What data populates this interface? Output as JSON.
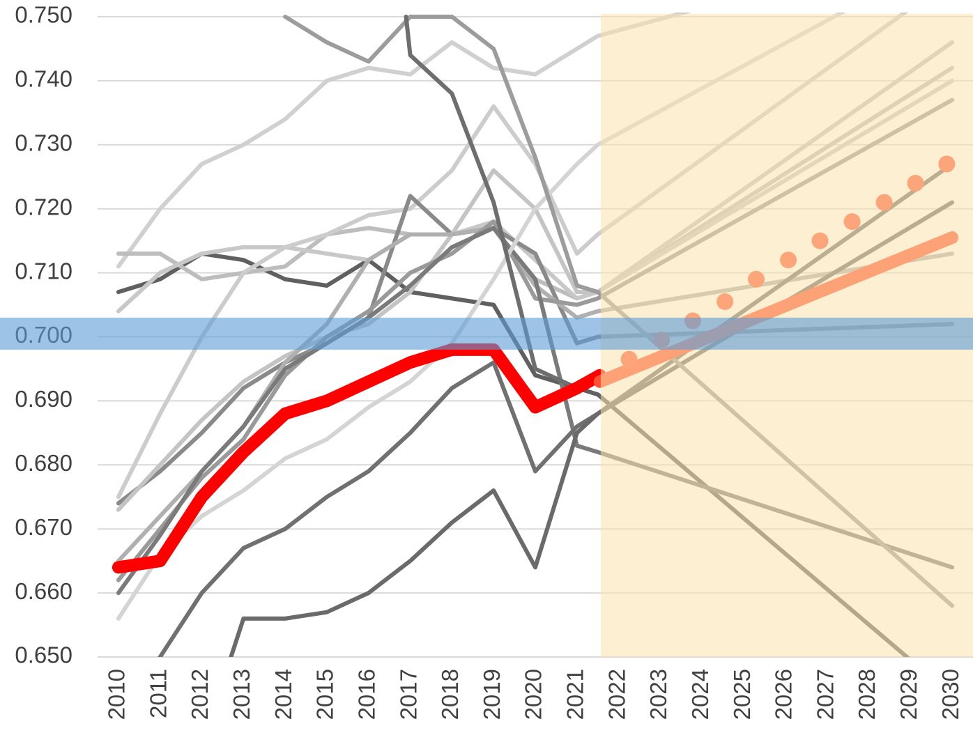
{
  "chart_data": {
    "type": "line",
    "xlim": [
      2009.5,
      2030.5
    ],
    "xticks": [
      2010,
      2011,
      2012,
      2013,
      2014,
      2015,
      2016,
      2017,
      2018,
      2019,
      2020,
      2021,
      2022,
      2023,
      2024,
      2025,
      2026,
      2027,
      2028,
      2029,
      2030
    ],
    "ylim": [
      0.65,
      0.75
    ],
    "yticks": [
      {
        "value": 0.65,
        "label": "0.650"
      },
      {
        "value": 0.66,
        "label": "0.660"
      },
      {
        "value": 0.67,
        "label": "0.670"
      },
      {
        "value": 0.68,
        "label": "0.680"
      },
      {
        "value": 0.69,
        "label": "0.690"
      },
      {
        "value": 0.7,
        "label": "0.700"
      },
      {
        "value": 0.71,
        "label": "0.710"
      },
      {
        "value": 0.72,
        "label": "0.720"
      },
      {
        "value": 0.73,
        "label": "0.730"
      },
      {
        "value": 0.74,
        "label": "0.740"
      },
      {
        "value": 0.75,
        "label": "0.750"
      }
    ],
    "grid": true,
    "shaded_x": [
      2021.57,
      2030.5
    ],
    "shaded_color": "#fbe3ad",
    "band_y": [
      0.698,
      0.703
    ],
    "band_color": "#5b9bd5",
    "series": [
      {
        "kind": "line",
        "color": "#606060",
        "x": [
          2010,
          2011,
          2012,
          2013,
          2014,
          2015,
          2016,
          2017,
          2018,
          2019,
          2020,
          2021,
          2021.5,
          2030
        ],
        "values": [
          0.707,
          0.709,
          0.713,
          0.712,
          0.709,
          0.708,
          0.712,
          0.707,
          0.706,
          0.705,
          0.694,
          0.692,
          0.691,
          0.644
        ]
      },
      {
        "kind": "line",
        "color": "#d0d0d0",
        "x": [
          2010,
          2011,
          2012,
          2013,
          2014,
          2015,
          2016,
          2017,
          2018,
          2019,
          2020,
          2021,
          2021.5,
          2030
        ],
        "values": [
          0.711,
          0.72,
          0.727,
          0.73,
          0.734,
          0.74,
          0.742,
          0.741,
          0.746,
          0.742,
          0.741,
          0.745,
          0.747,
          0.762
        ]
      },
      {
        "kind": "line",
        "color": "#bdbdbd",
        "x": [
          2010,
          2011,
          2012,
          2013,
          2014,
          2015,
          2016,
          2017,
          2018,
          2019,
          2020,
          2021,
          2021.5,
          2030
        ],
        "values": [
          0.713,
          0.713,
          0.709,
          0.71,
          0.711,
          0.716,
          0.717,
          0.716,
          0.716,
          0.717,
          0.709,
          0.706,
          0.707,
          0.742
        ]
      },
      {
        "kind": "line",
        "color": "#c8c8c8",
        "x": [
          2010,
          2011,
          2012,
          2013,
          2014,
          2015,
          2016,
          2017,
          2018,
          2019,
          2020,
          2021,
          2021.5,
          2030
        ],
        "values": [
          0.704,
          0.71,
          0.713,
          0.714,
          0.714,
          0.713,
          0.712,
          0.716,
          0.716,
          0.718,
          0.712,
          0.706,
          0.707,
          0.74
        ]
      },
      {
        "kind": "line",
        "color": "#cccccc",
        "x": [
          2010,
          2011,
          2012,
          2013,
          2014,
          2015,
          2016,
          2017,
          2018,
          2019,
          2020,
          2021,
          2021.5,
          2030
        ],
        "values": [
          0.675,
          0.688,
          0.7,
          0.71,
          0.714,
          0.716,
          0.719,
          0.72,
          0.726,
          0.736,
          0.727,
          0.713,
          0.716,
          0.756
        ]
      },
      {
        "kind": "line",
        "color": "#8a8a8a",
        "x": [
          2010,
          2011,
          2012,
          2013,
          2014,
          2015,
          2016,
          2017,
          2018,
          2019,
          2020,
          2021,
          2021.5,
          2030
        ],
        "values": [
          0.674,
          0.679,
          0.685,
          0.692,
          0.696,
          0.699,
          0.703,
          0.722,
          0.716,
          0.717,
          0.713,
          0.699,
          0.7,
          0.702
        ]
      },
      {
        "kind": "line",
        "color": "#c4c4c4",
        "x": [
          2010,
          2011,
          2012,
          2013,
          2014,
          2015,
          2016,
          2017,
          2018,
          2019,
          2020,
          2021,
          2021.5,
          2030
        ],
        "values": [
          0.673,
          0.68,
          0.687,
          0.693,
          0.697,
          0.7,
          0.702,
          0.707,
          0.716,
          0.726,
          0.72,
          0.707,
          0.707,
          0.746
        ]
      },
      {
        "kind": "line",
        "color": "#b0b0b0",
        "x": [
          2010,
          2011,
          2012,
          2013,
          2014,
          2015,
          2016,
          2017,
          2018,
          2019,
          2020,
          2021,
          2021.5,
          2030
        ],
        "values": [
          0.665,
          0.672,
          0.679,
          0.686,
          0.696,
          0.702,
          0.712,
          0.716,
          0.716,
          0.717,
          0.708,
          0.703,
          0.704,
          0.713
        ]
      },
      {
        "kind": "line",
        "color": "#9a9a9a",
        "x": [
          2010,
          2011,
          2012,
          2013,
          2014,
          2015,
          2016,
          2017,
          2018,
          2019,
          2020,
          2021,
          2021.5,
          2030
        ],
        "values": [
          0.662,
          0.67,
          0.678,
          0.684,
          0.694,
          0.7,
          0.704,
          0.71,
          0.713,
          0.718,
          0.706,
          0.705,
          0.706,
          0.737
        ]
      },
      {
        "kind": "line",
        "color": "#7a7a7a",
        "x": [
          2010,
          2011,
          2012,
          2013,
          2014,
          2015,
          2016,
          2017,
          2018,
          2019,
          2020,
          2021,
          2021.5,
          2030
        ],
        "values": [
          0.66,
          0.669,
          0.679,
          0.686,
          0.695,
          0.699,
          0.703,
          0.708,
          0.714,
          0.717,
          0.709,
          0.683,
          0.682,
          0.664
        ]
      },
      {
        "kind": "line",
        "color": "#d4d4d4",
        "x": [
          2010,
          2011,
          2012,
          2013,
          2014,
          2015,
          2016,
          2017,
          2018,
          2019,
          2020,
          2021,
          2021.5,
          2030
        ],
        "values": [
          0.656,
          0.666,
          0.672,
          0.676,
          0.681,
          0.684,
          0.689,
          0.693,
          0.699,
          0.709,
          0.72,
          0.727,
          0.73,
          0.76
        ]
      },
      {
        "kind": "line",
        "color": "#707070",
        "x": [
          2010,
          2011,
          2012,
          2013,
          2014,
          2015,
          2016,
          2017,
          2018,
          2019,
          2020,
          2021,
          2021.5,
          2030
        ],
        "values": [
          0.64,
          0.65,
          0.66,
          0.667,
          0.67,
          0.675,
          0.679,
          0.685,
          0.692,
          0.696,
          0.679,
          0.686,
          0.688,
          0.727
        ]
      },
      {
        "kind": "line",
        "color": "#6a6a6a",
        "x": [
          2012.7,
          2013,
          2014,
          2015,
          2016,
          2017,
          2018,
          2019,
          2020,
          2021,
          2021.5,
          2030
        ],
        "values": [
          0.65,
          0.656,
          0.656,
          0.657,
          0.66,
          0.665,
          0.671,
          0.676,
          0.664,
          0.685,
          0.688,
          0.721
        ]
      },
      {
        "kind": "line",
        "color": "#9c9c9c",
        "x": [
          2014,
          2015,
          2016,
          2017,
          2018,
          2019,
          2020,
          2021,
          2021.5,
          2030
        ],
        "values": [
          0.75,
          0.746,
          0.743,
          0.75,
          0.75,
          0.745,
          0.728,
          0.708,
          0.707,
          0.658
        ]
      },
      {
        "kind": "line",
        "color": "#6e6e6e",
        "x": [
          2016.9,
          2017,
          2018,
          2019,
          2020,
          2021
        ],
        "values": [
          0.75,
          0.744,
          0.738,
          0.721,
          0.695,
          0.692
        ]
      },
      {
        "kind": "highlight",
        "color": "#ff0000",
        "x": [
          2010,
          2011,
          2012,
          2013,
          2014,
          2015,
          2016,
          2017,
          2018,
          2019,
          2020,
          2021,
          2021.55
        ],
        "values": [
          0.664,
          0.665,
          0.675,
          0.682,
          0.688,
          0.69,
          0.693,
          0.696,
          0.698,
          0.698,
          0.689,
          0.692,
          0.694
        ]
      },
      {
        "kind": "highlight",
        "color": "#ff5035",
        "x": [
          2021.55,
          2030
        ],
        "values": [
          0.693,
          0.7155
        ]
      },
      {
        "kind": "dots",
        "color": "#ff5a3c",
        "x": [
          2022.25,
          2023.03,
          2023.78,
          2024.55,
          2025.3,
          2026.07,
          2026.83,
          2027.6,
          2028.37,
          2029.12,
          2029.87
        ],
        "values": [
          0.6965,
          0.6995,
          0.7025,
          0.7055,
          0.709,
          0.712,
          0.715,
          0.718,
          0.721,
          0.724,
          0.727
        ]
      }
    ]
  }
}
